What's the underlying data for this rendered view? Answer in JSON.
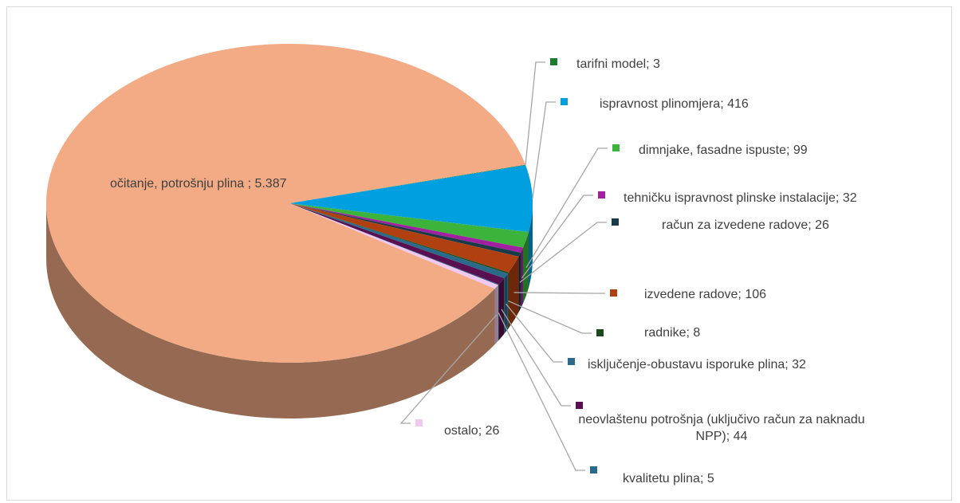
{
  "chart_data": {
    "type": "pie3d",
    "label_separator": "; ",
    "categories": [
      "očitanje, potrošnju plina ",
      "tarifni model",
      "ispravnost plinomjera",
      "dimnjake, fasadne ispuste",
      "tehničku ispravnost plinske instalacije",
      "račun za izvedene radove",
      "izvedene radove",
      "radnike",
      "isključenje-obustavu isporuke plina",
      "neovlaštenu potrošnja (uključivo račun za naknadu NPP)",
      "kvalitetu plina",
      "ostalo"
    ],
    "values": [
      5387,
      3,
      416,
      99,
      32,
      26,
      106,
      8,
      32,
      44,
      5,
      26
    ],
    "value_labels": [
      "5.387",
      "3",
      "416",
      "99",
      "32",
      "26",
      "106",
      "8",
      "32",
      "44",
      "5",
      "26"
    ],
    "colors": [
      "#f2ab85",
      "#1e7a30",
      "#00a0e0",
      "#3cb43c",
      "#a020a0",
      "#1a3a4a",
      "#b04010",
      "#1a4a1a",
      "#2a6a8a",
      "#5a1050",
      "#2a6a8a",
      "#f0c8f0"
    ]
  }
}
